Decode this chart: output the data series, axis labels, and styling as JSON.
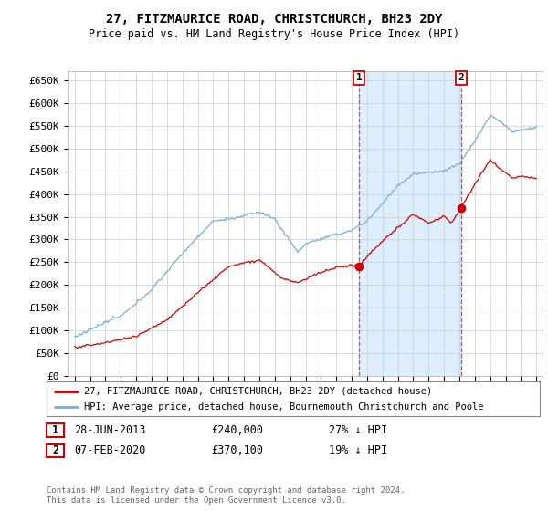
{
  "title": "27, FITZMAURICE ROAD, CHRISTCHURCH, BH23 2DY",
  "subtitle": "Price paid vs. HM Land Registry's House Price Index (HPI)",
  "ylim": [
    0,
    670000
  ],
  "yticks": [
    0,
    50000,
    100000,
    150000,
    200000,
    250000,
    300000,
    350000,
    400000,
    450000,
    500000,
    550000,
    600000,
    650000
  ],
  "ytick_labels": [
    "£0",
    "£50K",
    "£100K",
    "£150K",
    "£200K",
    "£250K",
    "£300K",
    "£350K",
    "£400K",
    "£450K",
    "£500K",
    "£550K",
    "£600K",
    "£650K"
  ],
  "hpi_color": "#7aaddb",
  "price_color": "#cc0000",
  "plot_bg_color": "#ffffff",
  "highlight_bg_color": "#ddeeff",
  "grid_color": "#cccccc",
  "transaction1_year": 2013.49,
  "transaction1_price": 240000,
  "transaction2_year": 2020.1,
  "transaction2_price": 370100,
  "legend_entry1": "27, FITZMAURICE ROAD, CHRISTCHURCH, BH23 2DY (detached house)",
  "legend_entry2": "HPI: Average price, detached house, Bournemouth Christchurch and Poole",
  "table_row1": [
    "1",
    "28-JUN-2013",
    "£240,000",
    "27% ↓ HPI"
  ],
  "table_row2": [
    "2",
    "07-FEB-2020",
    "£370,100",
    "19% ↓ HPI"
  ],
  "footer": "Contains HM Land Registry data © Crown copyright and database right 2024.\nThis data is licensed under the Open Government Licence v3.0.",
  "xlim_left": 1994.6,
  "xlim_right": 2025.4
}
